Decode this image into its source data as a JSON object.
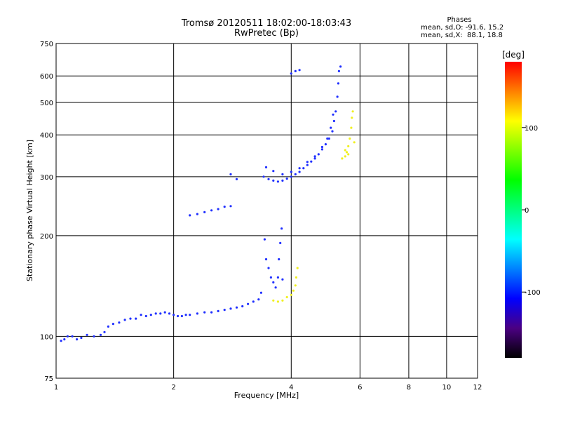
{
  "header": {
    "title_line1": "Tromsø 20120511 18:02:00-18:03:43",
    "title_line2": "RwPretec (Bp)"
  },
  "phases": {
    "heading": "Phases",
    "line1": "mean, sd,O: -91.6, 15.2",
    "line2": "mean, sd,X:  88.1, 18.8"
  },
  "colorbar": {
    "unit_label": "[deg]",
    "tick_labels": [
      "100",
      "0",
      "-100"
    ],
    "range": [
      -180,
      180
    ],
    "colors": [
      "#000000",
      "#4b0082",
      "#0000ff",
      "#0080ff",
      "#00ffff",
      "#00ff80",
      "#00ff00",
      "#80ff00",
      "#ffff00",
      "#ff8000",
      "#ff0000"
    ]
  },
  "chart_data": {
    "type": "scatter",
    "title": "Tromsø 20120511 18:02:00-18:03:43",
    "subtitle": "RwPretec (Bp)",
    "xlabel": "Frequency [MHz]",
    "ylabel": "Stationary phase Virtual Height [km]",
    "x_scale": "log",
    "y_scale": "log",
    "xlim": [
      1,
      12
    ],
    "ylim": [
      75,
      750
    ],
    "xticks": [
      "1",
      "2",
      "4",
      "6",
      "8",
      "10",
      "12"
    ],
    "xtick_values": [
      1,
      2,
      4,
      6,
      8,
      10,
      12
    ],
    "yticks": [
      "75",
      "100",
      "200",
      "300",
      "400",
      "500",
      "600",
      "750"
    ],
    "ytick_values": [
      75,
      100,
      200,
      300,
      400,
      500,
      600,
      750
    ],
    "grid": true,
    "series": [
      {
        "mode": "O",
        "color": "#2030ff",
        "points": [
          [
            1.03,
            97
          ],
          [
            1.05,
            98
          ],
          [
            1.07,
            100
          ],
          [
            1.1,
            100
          ],
          [
            1.13,
            98
          ],
          [
            1.16,
            99
          ],
          [
            1.2,
            101
          ],
          [
            1.25,
            100
          ],
          [
            1.3,
            101
          ],
          [
            1.33,
            103
          ],
          [
            1.36,
            107
          ],
          [
            1.4,
            109
          ],
          [
            1.45,
            110
          ],
          [
            1.5,
            112
          ],
          [
            1.55,
            113
          ],
          [
            1.6,
            113
          ],
          [
            1.65,
            116
          ],
          [
            1.7,
            115
          ],
          [
            1.75,
            116
          ],
          [
            1.8,
            117
          ],
          [
            1.85,
            117
          ],
          [
            1.9,
            118
          ],
          [
            1.95,
            117
          ],
          [
            2.0,
            116
          ],
          [
            2.05,
            115
          ],
          [
            2.1,
            115
          ],
          [
            2.15,
            116
          ],
          [
            2.2,
            116
          ],
          [
            2.3,
            117
          ],
          [
            2.4,
            118
          ],
          [
            2.5,
            118
          ],
          [
            2.6,
            119
          ],
          [
            2.7,
            120
          ],
          [
            2.8,
            121
          ],
          [
            2.9,
            122
          ],
          [
            3.0,
            123
          ],
          [
            3.1,
            125
          ],
          [
            3.2,
            127
          ],
          [
            3.3,
            129
          ],
          [
            3.35,
            135
          ],
          [
            3.42,
            195
          ],
          [
            3.45,
            170
          ],
          [
            3.5,
            160
          ],
          [
            3.55,
            150
          ],
          [
            3.6,
            145
          ],
          [
            3.65,
            140
          ],
          [
            3.7,
            150
          ],
          [
            3.72,
            170
          ],
          [
            3.75,
            190
          ],
          [
            3.78,
            210
          ],
          [
            3.8,
            148
          ],
          [
            3.4,
            300
          ],
          [
            3.5,
            295
          ],
          [
            3.6,
            292
          ],
          [
            3.7,
            290
          ],
          [
            3.8,
            292
          ],
          [
            3.9,
            296
          ],
          [
            4.0,
            300
          ],
          [
            4.1,
            305
          ],
          [
            4.2,
            310
          ],
          [
            4.3,
            318
          ],
          [
            4.4,
            325
          ],
          [
            4.5,
            333
          ],
          [
            4.6,
            340
          ],
          [
            4.7,
            350
          ],
          [
            4.8,
            362
          ],
          [
            4.9,
            375
          ],
          [
            5.0,
            390
          ],
          [
            5.1,
            410
          ],
          [
            5.15,
            440
          ],
          [
            5.2,
            470
          ],
          [
            5.25,
            520
          ],
          [
            5.28,
            570
          ],
          [
            5.3,
            620
          ],
          [
            5.35,
            640
          ],
          [
            3.45,
            320
          ],
          [
            3.6,
            312
          ],
          [
            3.8,
            305
          ],
          [
            4.0,
            310
          ],
          [
            4.2,
            318
          ],
          [
            4.4,
            332
          ],
          [
            4.6,
            345
          ],
          [
            4.8,
            368
          ],
          [
            4.95,
            390
          ],
          [
            5.05,
            420
          ],
          [
            5.12,
            460
          ],
          [
            4.0,
            610
          ],
          [
            4.1,
            620
          ],
          [
            4.2,
            625
          ],
          [
            2.8,
            305
          ],
          [
            2.9,
            295
          ],
          [
            2.2,
            230
          ],
          [
            2.3,
            232
          ],
          [
            2.4,
            235
          ],
          [
            2.5,
            238
          ],
          [
            2.6,
            240
          ],
          [
            2.7,
            244
          ],
          [
            2.8,
            245
          ]
        ]
      },
      {
        "mode": "X",
        "color": "#f0f020",
        "points": [
          [
            3.6,
            128
          ],
          [
            3.7,
            127
          ],
          [
            3.8,
            128
          ],
          [
            3.9,
            131
          ],
          [
            4.0,
            133
          ],
          [
            4.05,
            137
          ],
          [
            4.1,
            142
          ],
          [
            4.12,
            150
          ],
          [
            4.15,
            160
          ],
          [
            5.4,
            340
          ],
          [
            5.5,
            345
          ],
          [
            5.55,
            355
          ],
          [
            5.6,
            370
          ],
          [
            5.65,
            390
          ],
          [
            5.7,
            420
          ],
          [
            5.72,
            450
          ],
          [
            5.75,
            470
          ],
          [
            5.6,
            350
          ],
          [
            5.5,
            360
          ],
          [
            5.8,
            380
          ]
        ]
      }
    ]
  }
}
